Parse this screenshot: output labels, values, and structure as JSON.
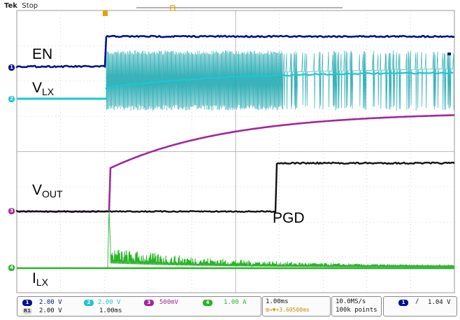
{
  "header": {
    "brand": "Tek",
    "status": "Stop"
  },
  "trace_labels": {
    "en": "EN",
    "vlx_main": "V",
    "vlx_sub": "LX",
    "vout_main": "V",
    "vout_sub": "OUT",
    "pgd": "PGD",
    "ilx_main": "I",
    "ilx_sub": "LX"
  },
  "channel_markers": {
    "ch1": "1",
    "ch2": "2",
    "ch3": "3",
    "ch4": "4"
  },
  "colors": {
    "ch1": "#00148c",
    "ch2": "#19c8d2",
    "ch3": "#a0289b",
    "ch4": "#111111",
    "ch_green": "#2ab42a",
    "grid": "#b9b9b9",
    "trigger": "#e8a000"
  },
  "readout": {
    "ch1_num": "1",
    "ch1_scale": "2.00 V",
    "ch2_num": "2",
    "ch2_scale": "2.00 V",
    "ch3_num": "3",
    "ch3_scale": "500mV",
    "ch4_num": "4",
    "ch4_scale": "1.00 A",
    "math_num": "R1",
    "math_scale": "2.00 V",
    "math_time": "1.00ms",
    "timebase": "1.00ms",
    "trigger_pos": "+3.60500ms",
    "sample_rate": "10.0MS/s",
    "record_length": "100k points",
    "trig_num": "1",
    "trig_slope": "/",
    "trig_level": "1.04 V"
  }
}
